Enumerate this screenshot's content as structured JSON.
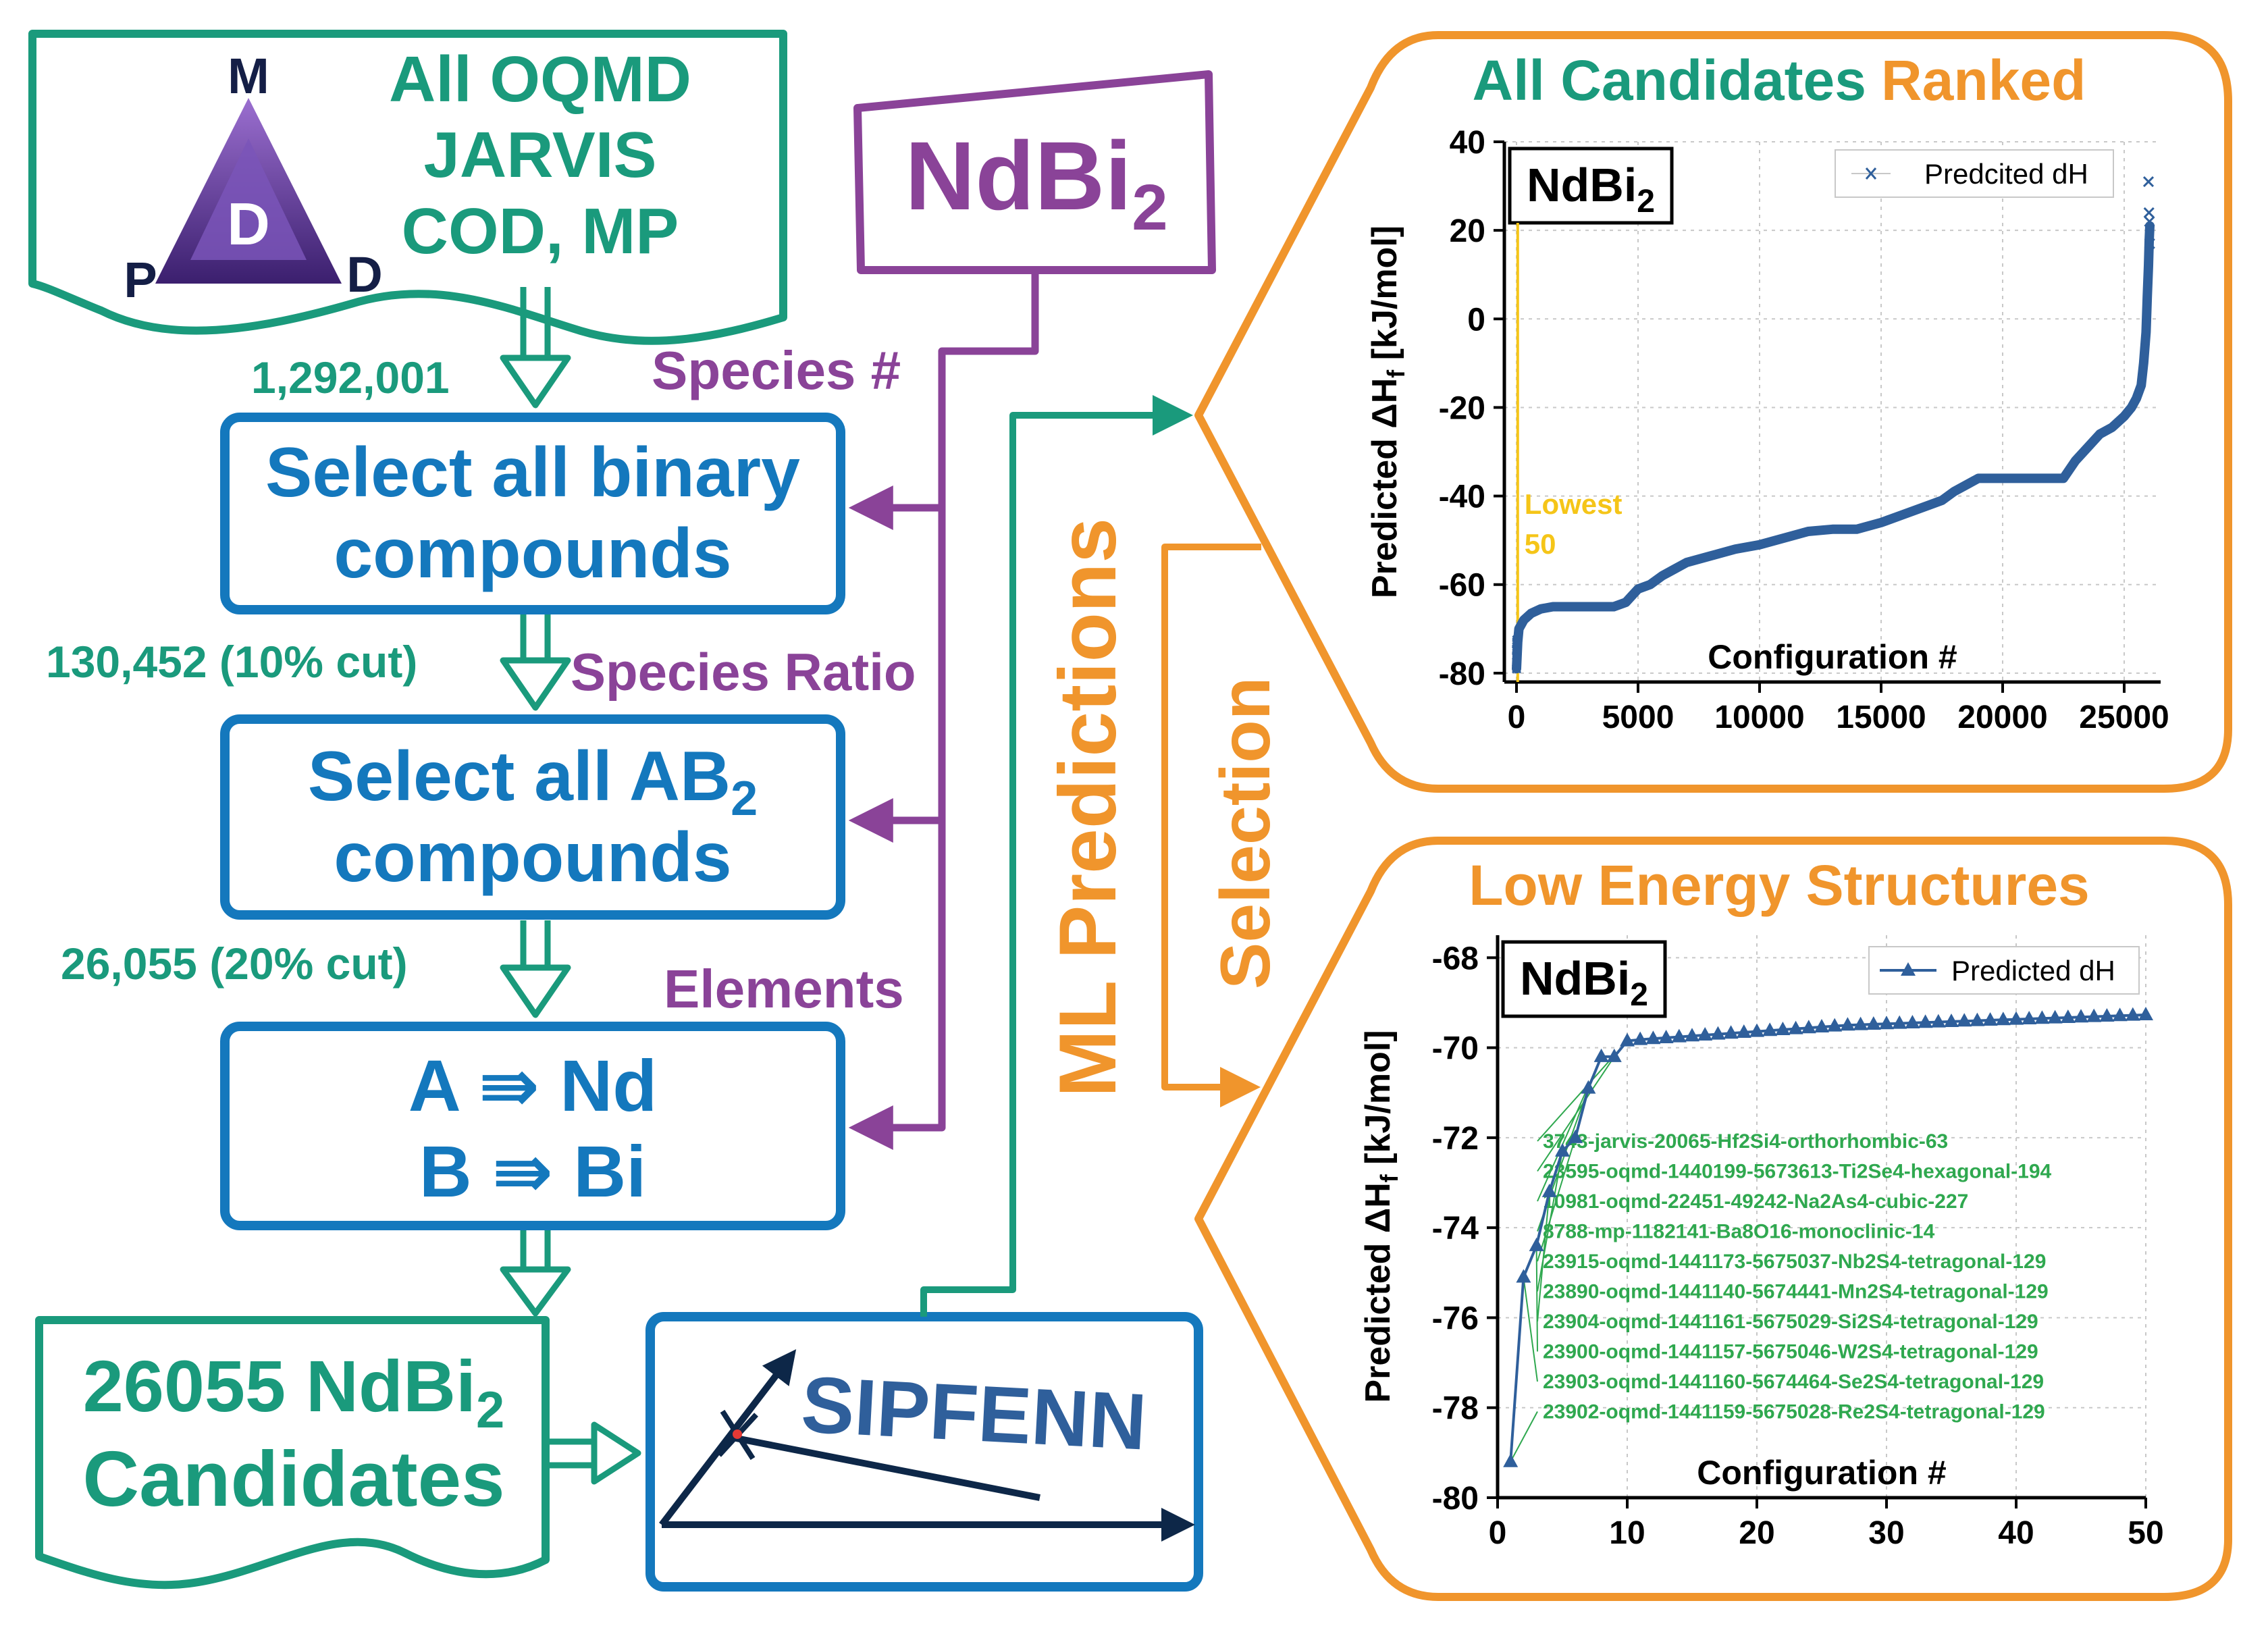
{
  "colors": {
    "teal": "#1a9a7c",
    "blue": "#1478bd",
    "purple": "#8a4398",
    "orange": "#f0952c",
    "series": "#2f5f9b",
    "lowest_line": "#f5c518",
    "label_green": "#2fa84f",
    "navy": "#0d2748"
  },
  "source_box": {
    "line1": "All OQMD",
    "line2": "JARVIS",
    "line3": "COD, MP",
    "logo": {
      "top": "M",
      "center": "D",
      "left": "P",
      "right": "D"
    }
  },
  "counts": {
    "c1": "1,292,001",
    "c2": "130,452 (10% cut)",
    "c3": "26,055 (20% cut)"
  },
  "steps": {
    "binary_line1": "Select all binary",
    "binary_line2": "compounds",
    "ab2_line1_main": "Select all AB",
    "ab2_line1_sub": "2",
    "ab2_line2": "compounds",
    "elem_line1": "A ⇛ Nd",
    "elem_line2": "B ⇛ Bi"
  },
  "input_formula": {
    "main": "NdBi",
    "sub": "2"
  },
  "filters": {
    "species_count": "Species #",
    "species_ratio": "Species Ratio",
    "elements": "Elements"
  },
  "candidates": {
    "line1_prefix": "26055 NdBi",
    "line1_sub": "2",
    "line2": "Candidates"
  },
  "sipfenn": {
    "label": "SIPFENN"
  },
  "flow_labels": {
    "ml": "ML Predictions",
    "selection": "Selection"
  },
  "panel_top": {
    "title_part1": "All Candidates",
    "title_part2": "Ranked"
  },
  "panel_bottom": {
    "title": "Low Energy Structures"
  },
  "chart_data": [
    {
      "type": "scatter",
      "formula_main": "NdBi",
      "formula_sub": "2",
      "legend": "Predcited dH",
      "legend_position": "top-right",
      "xlabel": "Configuration #",
      "ylabel_main": "Predicted ΔH",
      "ylabel_sub": "f",
      "ylabel_unit": " [kJ/mol]",
      "xlim": [
        -500,
        26500
      ],
      "ylim": [
        -82,
        40
      ],
      "xticks": [
        0,
        5000,
        10000,
        15000,
        20000,
        25000
      ],
      "yticks": [
        40,
        20,
        0,
        -20,
        -40,
        -60,
        -80
      ],
      "grid": true,
      "annotation_line1": "Lowest",
      "annotation_line2": "50",
      "x": [
        1,
        50,
        100,
        300,
        600,
        1000,
        1500,
        2000,
        2500,
        3000,
        3500,
        4000,
        4500,
        5000,
        5500,
        6000,
        6500,
        7000,
        8000,
        9000,
        10000,
        11000,
        12000,
        13000,
        14000,
        15000,
        16000,
        17000,
        17500,
        18000,
        19000,
        20000,
        21000,
        22000,
        22500,
        23000,
        23500,
        24000,
        24500,
        25000,
        25300,
        25500,
        25700,
        25800,
        25900,
        25950,
        26000,
        26030,
        26055
      ],
      "y": [
        -79,
        -73,
        -70,
        -68,
        -66.5,
        -65.5,
        -65,
        -65,
        -65,
        -65,
        -65,
        -65,
        -64,
        -61,
        -60,
        -58,
        -56.5,
        -55,
        -53.5,
        -52,
        -51,
        -49.5,
        -48,
        -47.5,
        -47.5,
        -46,
        -44,
        -42,
        -41,
        -39,
        -36,
        -36,
        -36,
        -36,
        -36,
        -32,
        -29,
        -26,
        -24.5,
        -22,
        -20,
        -18,
        -15,
        -10,
        -3,
        5,
        12,
        18,
        21
      ],
      "outliers_x": [
        26000,
        26020,
        26040,
        26050
      ],
      "outliers_y": [
        31,
        24,
        22,
        17
      ],
      "low_markers_x": [
        1,
        2,
        3,
        4,
        5,
        6,
        8,
        10,
        12,
        14
      ],
      "low_markers_y": [
        -79,
        -76,
        -75,
        -74.8,
        -74.5,
        -74,
        -73.5,
        -73.2,
        -72.9,
        -72.5
      ]
    },
    {
      "type": "line",
      "formula_main": "NdBi",
      "formula_sub": "2",
      "legend": "Predicted dH",
      "legend_position": "top-right",
      "xlabel": "Configuration #",
      "ylabel_main": "Predicted ΔH",
      "ylabel_sub": "f",
      "ylabel_unit": " [kJ/mol]",
      "xlim": [
        0,
        50
      ],
      "ylim": [
        -80,
        -67.5
      ],
      "xticks": [
        0,
        10,
        20,
        30,
        40,
        50
      ],
      "yticks": [
        -68,
        -70,
        -72,
        -74,
        -76,
        -78,
        -80
      ],
      "grid": true,
      "x": [
        1,
        2,
        3,
        4,
        5,
        6,
        7,
        8,
        9,
        10,
        11,
        12,
        13,
        14,
        15,
        16,
        17,
        18,
        19,
        20,
        21,
        22,
        23,
        24,
        25,
        26,
        27,
        28,
        29,
        30,
        31,
        32,
        33,
        34,
        35,
        36,
        37,
        38,
        39,
        40,
        41,
        42,
        43,
        44,
        45,
        46,
        47,
        48,
        49,
        50
      ],
      "y": [
        -79.2,
        -75.1,
        -74.4,
        -73.2,
        -72.3,
        -72.0,
        -70.9,
        -70.2,
        -70.2,
        -69.85,
        -69.82,
        -69.8,
        -69.78,
        -69.76,
        -69.74,
        -69.72,
        -69.7,
        -69.68,
        -69.66,
        -69.64,
        -69.62,
        -69.6,
        -69.58,
        -69.56,
        -69.54,
        -69.52,
        -69.5,
        -69.49,
        -69.48,
        -69.47,
        -69.46,
        -69.45,
        -69.44,
        -69.43,
        -69.42,
        -69.41,
        -69.4,
        -69.39,
        -69.38,
        -69.37,
        -69.36,
        -69.35,
        -69.34,
        -69.33,
        -69.32,
        -69.31,
        -69.3,
        -69.29,
        -69.28,
        -69.27
      ],
      "structure_labels": [
        "3743-jarvis-20065-Hf2Si4-orthorhombic-63",
        "23595-oqmd-1440199-5673613-Ti2Se4-hexagonal-194",
        "10981-oqmd-22451-49242-Na2As4-cubic-227",
        "8788-mp-1182141-Ba8O16-monoclinic-14",
        "23915-oqmd-1441173-5675037-Nb2S4-tetragonal-129",
        "23890-oqmd-1441140-5674441-Mn2S4-tetragonal-129",
        "23904-oqmd-1441161-5675029-Si2S4-tetragonal-129",
        "23900-oqmd-1441157-5675046-W2S4-tetragonal-129",
        "23903-oqmd-1441160-5674464-Se2S4-tetragonal-129",
        "23902-oqmd-1441159-5675028-Re2S4-tetragonal-129"
      ]
    }
  ]
}
